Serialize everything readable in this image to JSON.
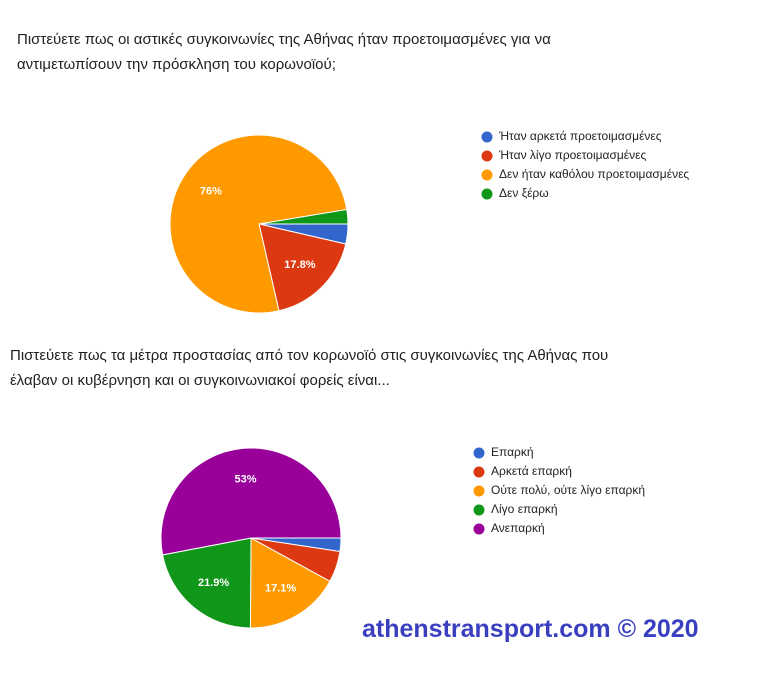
{
  "chart_data": [
    {
      "type": "pie",
      "title": [
        "Πιστεύετε πως οι αστικές συγκοινωνίες της Αθήνας ήταν προετοιμασμένες για να",
        "αντιμετωπίσουν την πρόσκληση του κορωνοϊού;"
      ],
      "categories": [
        "Ήταν αρκετά προετοιμασμένες",
        "Ήταν λίγο προετοιμασμένες",
        "Δεν ήταν καθόλου προετοιμασμένες",
        "Δεν ξέρω"
      ],
      "values": [
        3.6,
        17.8,
        76,
        2.6
      ],
      "value_labels": [
        null,
        "17.8%",
        "76%",
        null
      ],
      "colors": [
        "#3366cc",
        "#dc3912",
        "#ff9900",
        "#109618"
      ]
    },
    {
      "type": "pie",
      "title": [
        "Πιστεύετε πως τα μέτρα προστασίας από τον κορωνοϊό στις συγκοινωνίες της Αθήνας που",
        "έλαβαν οι κυβέρνηση και οι συγκοινωνιακοί φορείς είναι..."
      ],
      "categories": [
        "Επαρκή",
        "Αρκετά επαρκή",
        "Ούτε πολύ, ούτε λίγο επαρκή",
        "Λίγο επαρκή",
        "Ανεπαρκή"
      ],
      "values": [
        2.4,
        5.6,
        17.1,
        21.9,
        53
      ],
      "value_labels": [
        null,
        null,
        "17.1%",
        "21.9%",
        "53%"
      ],
      "colors": [
        "#3366cc",
        "#dc3912",
        "#ff9900",
        "#109618",
        "#990099"
      ]
    }
  ],
  "watermark": "athenstransport.com © 2020"
}
